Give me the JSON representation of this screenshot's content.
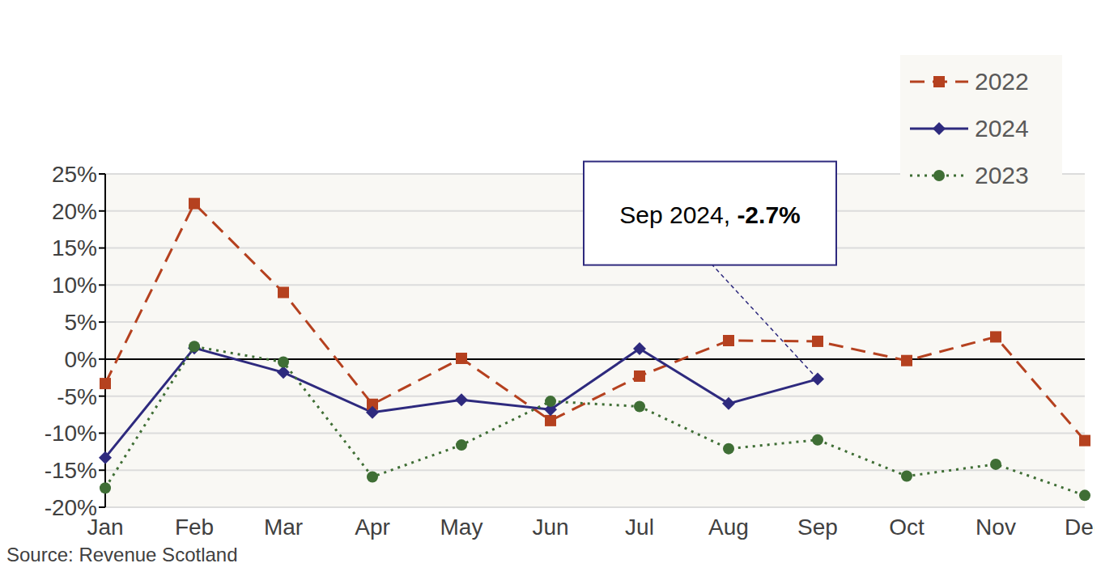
{
  "chart_data": {
    "type": "line",
    "categories": [
      "Jan",
      "Feb",
      "Mar",
      "Apr",
      "May",
      "Jun",
      "Jul",
      "Aug",
      "Sep",
      "Oct",
      "Nov",
      "Dec"
    ],
    "series": [
      {
        "name": "2022",
        "color": "#b5411f",
        "marker": "square",
        "line_style": "dashed",
        "values": [
          -3.3,
          21.0,
          9.0,
          -6.1,
          0.1,
          -8.3,
          -2.3,
          2.5,
          2.4,
          -0.2,
          3.0,
          -11.0
        ]
      },
      {
        "name": "2024",
        "color": "#2e2a7e",
        "marker": "diamond",
        "line_style": "solid",
        "values": [
          -13.3,
          1.5,
          -1.8,
          -7.2,
          -5.5,
          -6.8,
          1.4,
          -6.0,
          -2.7,
          null,
          null,
          null
        ]
      },
      {
        "name": "2023",
        "color": "#3f6e35",
        "marker": "circle",
        "line_style": "dotted",
        "values": [
          -17.4,
          1.7,
          -0.4,
          -15.9,
          -11.6,
          -5.7,
          -6.4,
          -12.1,
          -10.9,
          -15.8,
          -14.2,
          -18.4
        ]
      }
    ],
    "ylim": [
      -20,
      25
    ],
    "yticks": [
      {
        "value": -20,
        "label": "-20%"
      },
      {
        "value": -15,
        "label": "-15%"
      },
      {
        "value": -10,
        "label": "-10%"
      },
      {
        "value": -5,
        "label": "-5%"
      },
      {
        "value": 0,
        "label": "0%"
      },
      {
        "value": 5,
        "label": "5%"
      },
      {
        "value": 10,
        "label": "10%"
      },
      {
        "value": 15,
        "label": "15%"
      },
      {
        "value": 20,
        "label": "20%"
      },
      {
        "value": 25,
        "label": "25%"
      }
    ],
    "grid": true,
    "legend": "upper right",
    "annotation": {
      "label": "Sep 2024,",
      "value_label": "-2.7%",
      "value": -2.7,
      "category": "Sep",
      "series": "2024"
    },
    "source": "Source: Revenue Scotland"
  }
}
